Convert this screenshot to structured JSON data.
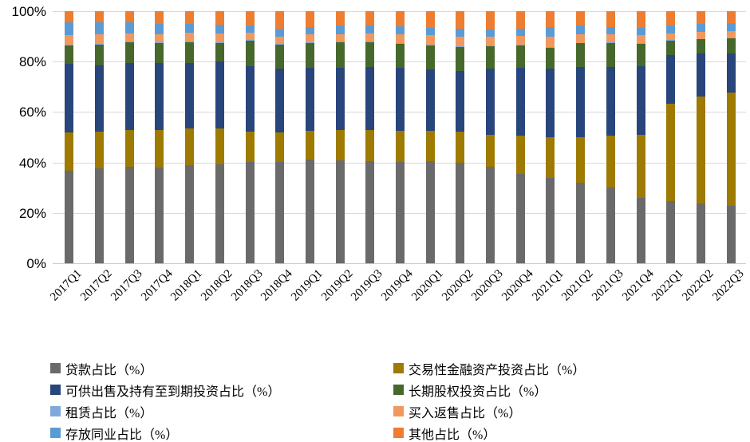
{
  "chart_data": {
    "type": "bar",
    "subtype": "stacked-100-percent",
    "title": "",
    "xlabel": "",
    "ylabel": "",
    "ylim": [
      0,
      100
    ],
    "yticks": [
      "0%",
      "20%",
      "40%",
      "60%",
      "80%",
      "100%"
    ],
    "grid": true,
    "gridline_color": "#d9d9d9",
    "legend_position": "bottom",
    "legend_columns": 2,
    "categories": [
      "2017Q1",
      "2017Q2",
      "2017Q3",
      "2017Q4",
      "2018Q1",
      "2018Q2",
      "2018Q3",
      "2018Q4",
      "2019Q1",
      "2019Q2",
      "2019Q3",
      "2019Q4",
      "2020Q1",
      "2020Q2",
      "2020Q3",
      "2020Q4",
      "2021Q1",
      "2021Q2",
      "2021Q3",
      "2021Q4",
      "2022Q1",
      "2022Q2",
      "2022Q3"
    ],
    "series": [
      {
        "key": "loans",
        "name": "贷款占比（%）",
        "color": "#6A6A6A",
        "values": [
          36.8,
          37.7,
          38.3,
          38.1,
          38.8,
          39.4,
          40.1,
          40.2,
          41.0,
          40.9,
          40.6,
          40.1,
          40.6,
          39.9,
          38.2,
          35.6,
          34.0,
          31.9,
          30.0,
          26.1,
          24.8,
          23.6,
          22.9
        ]
      },
      {
        "key": "trading-financial-assets",
        "name": "交易性金融资产投资占比（%）",
        "color": "#9E7A00",
        "values": [
          15.0,
          14.4,
          14.7,
          14.7,
          14.7,
          14.2,
          12.2,
          11.6,
          11.4,
          12.0,
          12.3,
          12.4,
          11.9,
          12.3,
          12.9,
          15.0,
          15.9,
          18.0,
          20.7,
          24.9,
          38.6,
          42.4,
          44.7
        ]
      },
      {
        "key": "afs-htm-investments",
        "name": "可供出售及持有至到期投资占比（%）",
        "color": "#28457C",
        "values": [
          27.4,
          26.5,
          26.4,
          26.7,
          26.1,
          26.5,
          25.9,
          25.3,
          25.0,
          24.6,
          24.9,
          25.0,
          24.5,
          24.0,
          26.1,
          26.9,
          27.3,
          27.8,
          27.0,
          27.1,
          19.2,
          17.1,
          15.6
        ]
      },
      {
        "key": "long-term-equity",
        "name": "长期股权投资占比（%）",
        "color": "#47682C",
        "values": [
          7.2,
          8.1,
          8.2,
          7.8,
          8.2,
          7.2,
          10.1,
          9.5,
          10.1,
          10.1,
          9.9,
          9.5,
          9.3,
          9.5,
          8.8,
          8.8,
          8.3,
          9.5,
          9.7,
          9.0,
          5.8,
          5.7,
          5.9
        ]
      },
      {
        "key": "leasing",
        "name": "租赁占比（%）",
        "color": "#7FA8DC",
        "values": [
          0.3,
          0.3,
          0.3,
          0.3,
          0.3,
          0.3,
          0.3,
          0.3,
          0.3,
          0.3,
          0.3,
          0.3,
          0.3,
          0.3,
          0.3,
          0.3,
          0.3,
          0.3,
          0.3,
          0.3,
          0.3,
          0.3,
          0.3
        ]
      },
      {
        "key": "buy-resale",
        "name": "买入返售占比（%）",
        "color": "#F0985E",
        "values": [
          3.9,
          3.9,
          3.4,
          3.4,
          3.4,
          3.6,
          2.8,
          3.1,
          3.0,
          3.1,
          3.2,
          3.5,
          3.8,
          4.0,
          3.7,
          3.7,
          4.2,
          3.2,
          3.1,
          3.1,
          2.6,
          2.7,
          2.7
        ]
      },
      {
        "key": "interbank-deposits",
        "name": "存放同业占比（%）",
        "color": "#5B9BD5",
        "values": [
          4.9,
          4.6,
          4.2,
          4.0,
          3.5,
          3.5,
          3.0,
          3.0,
          3.0,
          3.2,
          3.2,
          3.1,
          2.9,
          3.1,
          2.8,
          2.8,
          3.6,
          3.5,
          3.0,
          2.9,
          2.9,
          3.1,
          3.1
        ]
      },
      {
        "key": "other",
        "name": "其他占比（%）",
        "color": "#ED7D31",
        "values": [
          4.5,
          4.5,
          4.5,
          5.0,
          5.0,
          5.3,
          5.6,
          7.0,
          6.2,
          5.8,
          5.6,
          6.1,
          6.7,
          6.9,
          7.2,
          6.9,
          6.4,
          5.8,
          6.2,
          6.6,
          5.8,
          5.1,
          4.8
        ]
      }
    ]
  }
}
